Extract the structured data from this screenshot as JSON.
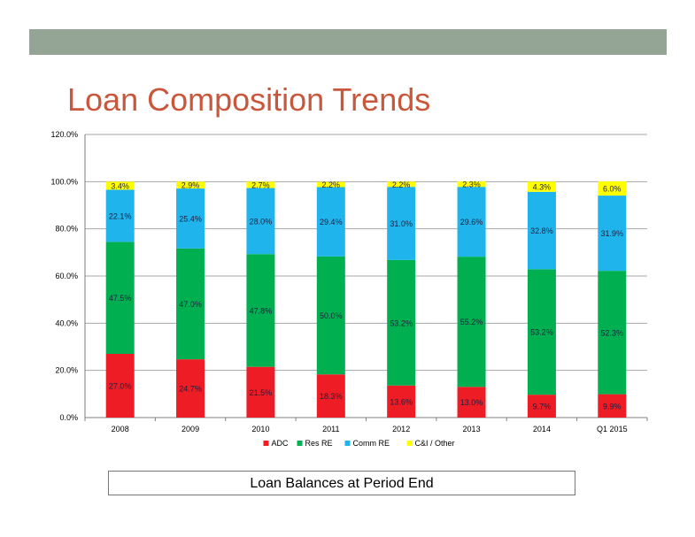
{
  "slide": {
    "title": "Loan Composition Trends",
    "caption": "Loan Balances at Period End"
  },
  "colors": {
    "top_bar": "#95a595",
    "title": "#c8573b",
    "ADC": "#ee1c24",
    "Res RE": "#00b050",
    "Comm RE": "#1fb4ec",
    "C&I / Other": "#ffff00"
  },
  "chart_data": {
    "type": "bar",
    "stacked": true,
    "title": "",
    "xlabel": "",
    "ylabel": "",
    "ylim": [
      0,
      120
    ],
    "yticks": [
      "0.0%",
      "20.0%",
      "40.0%",
      "60.0%",
      "80.0%",
      "100.0%",
      "120.0%"
    ],
    "grid": true,
    "legend_position": "bottom",
    "categories": [
      "2008",
      "2009",
      "2010",
      "2011",
      "2012",
      "2013",
      "2014",
      "Q1 2015"
    ],
    "series": [
      {
        "name": "ADC",
        "values": [
          27.0,
          24.7,
          21.5,
          18.3,
          13.6,
          13.0,
          9.7,
          9.9
        ],
        "labels": [
          "27.0%",
          "24.7%",
          "21.5%",
          "18.3%",
          "13.6%",
          "13.0%",
          "9.7%",
          "9.9%"
        ]
      },
      {
        "name": "Res RE",
        "values": [
          47.5,
          47.0,
          47.8,
          50.0,
          53.2,
          55.2,
          53.2,
          52.3
        ],
        "labels": [
          "47.5%",
          "47.0%",
          "47.8%",
          "50.0%",
          "53.2%",
          "55.2%",
          "53.2%",
          "52.3%"
        ]
      },
      {
        "name": "Comm RE",
        "values": [
          22.1,
          25.4,
          28.0,
          29.4,
          31.0,
          29.6,
          32.8,
          31.9
        ],
        "labels": [
          "22.1%",
          "25.4%",
          "28.0%",
          "29.4%",
          "31.0%",
          "29.6%",
          "32.8%",
          "31.9%"
        ]
      },
      {
        "name": "C&I / Other",
        "values": [
          3.4,
          2.9,
          2.7,
          2.2,
          2.2,
          2.3,
          4.3,
          6.0
        ],
        "labels": [
          "3.4%",
          "2.9%",
          "2.7%",
          "2.2%",
          "2.2%",
          "2.3%",
          "4.3%",
          "6.0%"
        ]
      }
    ]
  }
}
